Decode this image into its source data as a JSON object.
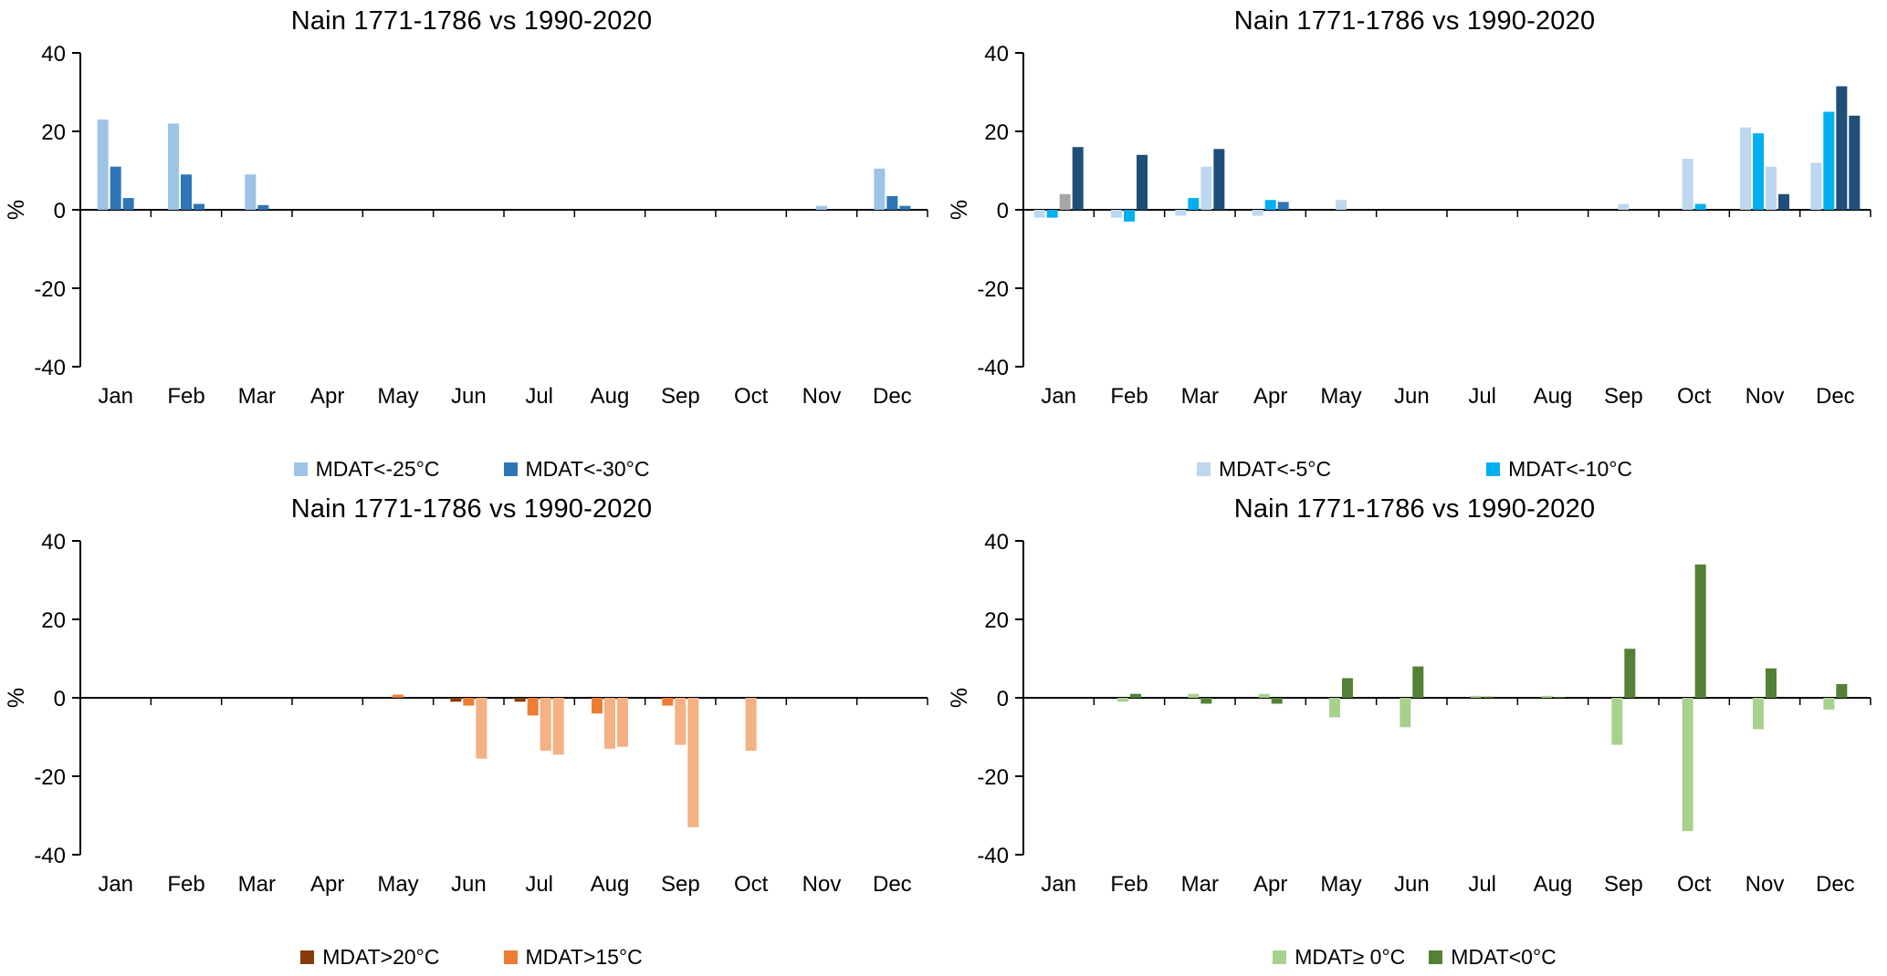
{
  "page": {
    "background": "#ffffff"
  },
  "chart_data": [
    {
      "type": "bar",
      "title": "Nain 1771-1786 vs 1990-2020",
      "ylabel": "%",
      "ylim": [
        -40,
        40
      ],
      "yticks": [
        40,
        20,
        0,
        -20,
        -40
      ],
      "categories": [
        "Jan",
        "Feb",
        "Mar",
        "Apr",
        "May",
        "Jun",
        "Jul",
        "Aug",
        "Sep",
        "Oct",
        "Nov",
        "Dec"
      ],
      "palette": [
        "#9dc3e6",
        "#2e75b6"
      ],
      "legend": [
        {
          "label": "MDAT<-25°C",
          "color": "#9dc3e6"
        },
        {
          "label": "MDAT<-30°C",
          "color": "#2e75b6"
        }
      ],
      "bars": [
        [
          [
            0,
            23
          ],
          [
            1,
            11
          ],
          [
            1,
            3
          ]
        ],
        [
          [
            0,
            22
          ],
          [
            1,
            9
          ],
          [
            1,
            1.5
          ]
        ],
        [
          [
            0,
            9
          ],
          [
            1,
            1.2
          ]
        ],
        [],
        [],
        [],
        [],
        [],
        [],
        [],
        [
          [
            0,
            1
          ]
        ],
        [
          [
            0,
            10.5
          ],
          [
            1,
            3.5
          ],
          [
            1,
            1
          ]
        ]
      ]
    },
    {
      "type": "bar",
      "title": "Nain 1771-1786 vs 1990-2020",
      "ylabel": "%",
      "ylim": [
        -40,
        40
      ],
      "yticks": [
        40,
        20,
        0,
        -20,
        -40
      ],
      "categories": [
        "Jan",
        "Feb",
        "Mar",
        "Apr",
        "May",
        "Jun",
        "Jul",
        "Aug",
        "Sep",
        "Oct",
        "Nov",
        "Dec"
      ],
      "palette": [
        "#bdd7ee",
        "#00b0f0",
        "#a6a6a6",
        "#2e75b6",
        "#1f4e79"
      ],
      "legend": [
        {
          "label": "MDAT<-5°C",
          "color": "#bdd7ee"
        },
        {
          "label": "MDAT<-10°C",
          "color": "#00b0f0"
        }
      ],
      "bars": [
        [
          [
            0,
            -2
          ],
          [
            1,
            -2
          ],
          [
            2,
            4
          ],
          [
            4,
            16
          ]
        ],
        [
          [
            0,
            -2
          ],
          [
            1,
            -3
          ],
          [
            4,
            14
          ]
        ],
        [
          [
            0,
            -1.5
          ],
          [
            1,
            3
          ],
          [
            0,
            11
          ],
          [
            4,
            15.5
          ]
        ],
        [
          [
            0,
            -1.5
          ],
          [
            1,
            2.5
          ],
          [
            3,
            2
          ]
        ],
        [
          [
            0,
            2.5
          ]
        ],
        [],
        [],
        [],
        [
          [
            0,
            1.5
          ]
        ],
        [
          [
            0,
            13
          ],
          [
            1,
            1.5
          ]
        ],
        [
          [
            0,
            21
          ],
          [
            1,
            19.5
          ],
          [
            0,
            11
          ],
          [
            4,
            4
          ]
        ],
        [
          [
            0,
            12
          ],
          [
            1,
            25
          ],
          [
            4,
            31.5
          ],
          [
            4,
            24
          ]
        ]
      ]
    },
    {
      "type": "bar",
      "title": "Nain 1771-1786 vs 1990-2020",
      "ylabel": "%",
      "ylim": [
        -40,
        40
      ],
      "yticks": [
        40,
        20,
        0,
        -20,
        -40
      ],
      "categories": [
        "Jan",
        "Feb",
        "Mar",
        "Apr",
        "May",
        "Jun",
        "Jul",
        "Aug",
        "Sep",
        "Oct",
        "Nov",
        "Dec"
      ],
      "palette": [
        "#843c0c",
        "#ed7d31",
        "#f4b183"
      ],
      "legend": [
        {
          "label": "MDAT>20°C",
          "color": "#843c0c"
        },
        {
          "label": "MDAT>15°C",
          "color": "#ed7d31"
        }
      ],
      "bars": [
        [],
        [],
        [],
        [],
        [
          [
            1,
            0.8
          ]
        ],
        [
          [
            0,
            -1
          ],
          [
            1,
            -2
          ],
          [
            2,
            -15.5
          ]
        ],
        [
          [
            0,
            -1
          ],
          [
            1,
            -4.5
          ],
          [
            2,
            -13.5
          ],
          [
            2,
            -14.5
          ]
        ],
        [
          [
            1,
            -4
          ],
          [
            2,
            -13
          ],
          [
            2,
            -12.5
          ]
        ],
        [
          [
            1,
            -2
          ],
          [
            2,
            -12
          ],
          [
            2,
            -33
          ]
        ],
        [
          [
            2,
            -13.5
          ]
        ],
        [],
        []
      ]
    },
    {
      "type": "bar",
      "title": "Nain 1771-1786 vs 1990-2020",
      "ylabel": "%",
      "ylim": [
        -40,
        40
      ],
      "yticks": [
        40,
        20,
        0,
        -20,
        -40
      ],
      "categories": [
        "Jan",
        "Feb",
        "Mar",
        "Apr",
        "May",
        "Jun",
        "Jul",
        "Aug",
        "Sep",
        "Oct",
        "Nov",
        "Dec"
      ],
      "palette": [
        "#a9d18e",
        "#538135"
      ],
      "legend": [
        {
          "label": "MDAT≥ 0°C",
          "color": "#a9d18e"
        },
        {
          "label": "MDAT<0°C",
          "color": "#538135"
        }
      ],
      "bars": [
        [],
        [
          [
            0,
            -1
          ],
          [
            1,
            1
          ]
        ],
        [
          [
            0,
            1
          ],
          [
            1,
            -1.5
          ]
        ],
        [
          [
            0,
            1
          ],
          [
            1,
            -1.5
          ]
        ],
        [
          [
            0,
            -5
          ],
          [
            1,
            5
          ]
        ],
        [
          [
            0,
            -7.5
          ],
          [
            1,
            8
          ]
        ],
        [
          [
            0,
            0.5
          ],
          [
            1,
            0.3
          ]
        ],
        [
          [
            0,
            0.5
          ],
          [
            1,
            0.2
          ]
        ],
        [
          [
            0,
            -12
          ],
          [
            1,
            12.5
          ]
        ],
        [
          [
            0,
            -34
          ],
          [
            1,
            34
          ]
        ],
        [
          [
            0,
            -8
          ],
          [
            1,
            7.5
          ]
        ],
        [
          [
            0,
            -3
          ],
          [
            1,
            3.5
          ]
        ]
      ]
    }
  ]
}
